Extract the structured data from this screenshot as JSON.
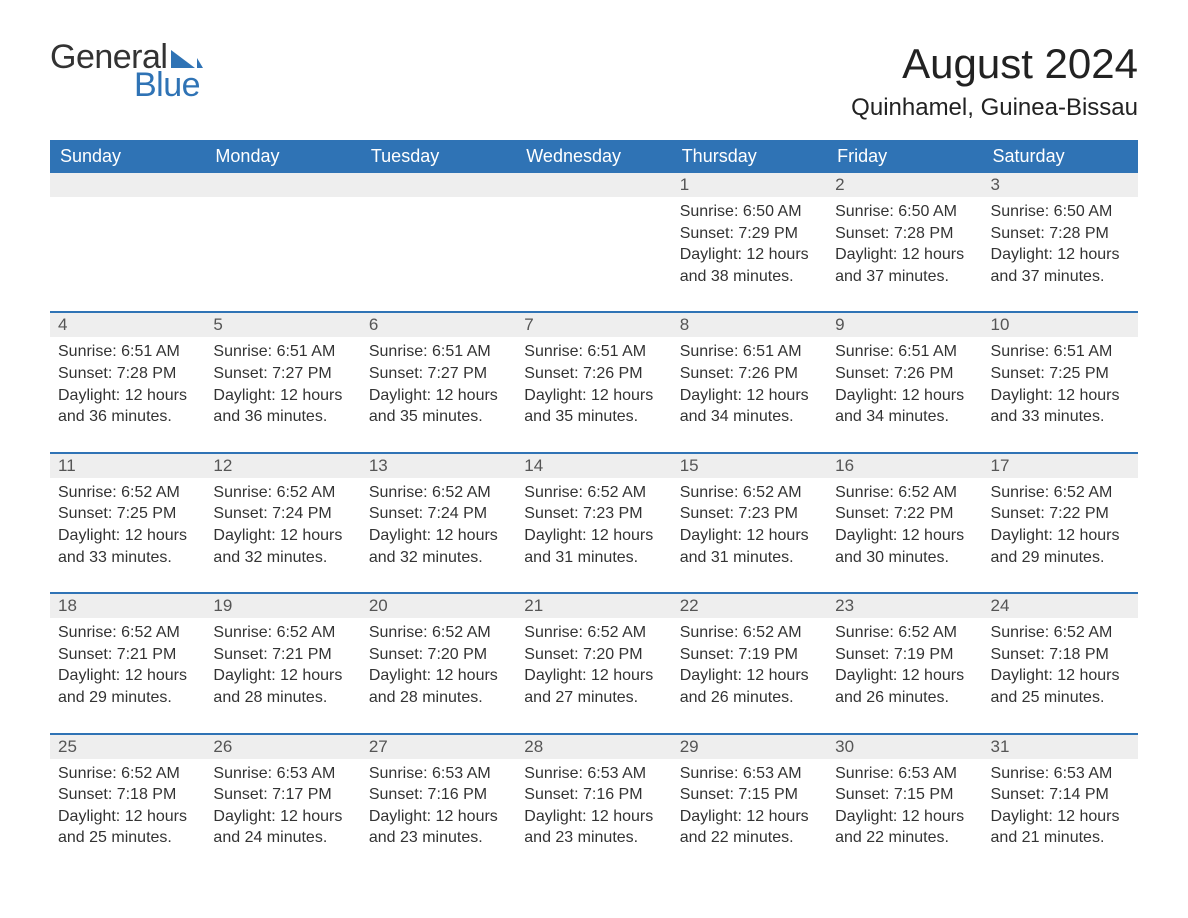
{
  "brand": {
    "text1": "General",
    "text2": "Blue",
    "logo_color": "#2f73b5",
    "text1_color": "#333333"
  },
  "title": "August 2024",
  "location": "Quinhamel, Guinea-Bissau",
  "colors": {
    "header_bg": "#2f73b5",
    "header_fg": "#ffffff",
    "date_bar_bg": "#eeeeee",
    "date_bar_fg": "#555555",
    "body_text": "#333333",
    "week_rule": "#2f73b5",
    "page_bg": "#ffffff"
  },
  "typography": {
    "title_fontsize": 42,
    "location_fontsize": 24,
    "dayheader_fontsize": 18,
    "date_fontsize": 17,
    "body_fontsize": 16,
    "font_family": "Arial, Helvetica, sans-serif"
  },
  "day_names": [
    "Sunday",
    "Monday",
    "Tuesday",
    "Wednesday",
    "Thursday",
    "Friday",
    "Saturday"
  ],
  "weeks": [
    [
      {
        "empty": true
      },
      {
        "empty": true
      },
      {
        "empty": true
      },
      {
        "empty": true
      },
      {
        "date": "1",
        "sunrise": "Sunrise: 6:50 AM",
        "sunset": "Sunset: 7:29 PM",
        "daylight": "Daylight: 12 hours and 38 minutes."
      },
      {
        "date": "2",
        "sunrise": "Sunrise: 6:50 AM",
        "sunset": "Sunset: 7:28 PM",
        "daylight": "Daylight: 12 hours and 37 minutes."
      },
      {
        "date": "3",
        "sunrise": "Sunrise: 6:50 AM",
        "sunset": "Sunset: 7:28 PM",
        "daylight": "Daylight: 12 hours and 37 minutes."
      }
    ],
    [
      {
        "date": "4",
        "sunrise": "Sunrise: 6:51 AM",
        "sunset": "Sunset: 7:28 PM",
        "daylight": "Daylight: 12 hours and 36 minutes."
      },
      {
        "date": "5",
        "sunrise": "Sunrise: 6:51 AM",
        "sunset": "Sunset: 7:27 PM",
        "daylight": "Daylight: 12 hours and 36 minutes."
      },
      {
        "date": "6",
        "sunrise": "Sunrise: 6:51 AM",
        "sunset": "Sunset: 7:27 PM",
        "daylight": "Daylight: 12 hours and 35 minutes."
      },
      {
        "date": "7",
        "sunrise": "Sunrise: 6:51 AM",
        "sunset": "Sunset: 7:26 PM",
        "daylight": "Daylight: 12 hours and 35 minutes."
      },
      {
        "date": "8",
        "sunrise": "Sunrise: 6:51 AM",
        "sunset": "Sunset: 7:26 PM",
        "daylight": "Daylight: 12 hours and 34 minutes."
      },
      {
        "date": "9",
        "sunrise": "Sunrise: 6:51 AM",
        "sunset": "Sunset: 7:26 PM",
        "daylight": "Daylight: 12 hours and 34 minutes."
      },
      {
        "date": "10",
        "sunrise": "Sunrise: 6:51 AM",
        "sunset": "Sunset: 7:25 PM",
        "daylight": "Daylight: 12 hours and 33 minutes."
      }
    ],
    [
      {
        "date": "11",
        "sunrise": "Sunrise: 6:52 AM",
        "sunset": "Sunset: 7:25 PM",
        "daylight": "Daylight: 12 hours and 33 minutes."
      },
      {
        "date": "12",
        "sunrise": "Sunrise: 6:52 AM",
        "sunset": "Sunset: 7:24 PM",
        "daylight": "Daylight: 12 hours and 32 minutes."
      },
      {
        "date": "13",
        "sunrise": "Sunrise: 6:52 AM",
        "sunset": "Sunset: 7:24 PM",
        "daylight": "Daylight: 12 hours and 32 minutes."
      },
      {
        "date": "14",
        "sunrise": "Sunrise: 6:52 AM",
        "sunset": "Sunset: 7:23 PM",
        "daylight": "Daylight: 12 hours and 31 minutes."
      },
      {
        "date": "15",
        "sunrise": "Sunrise: 6:52 AM",
        "sunset": "Sunset: 7:23 PM",
        "daylight": "Daylight: 12 hours and 31 minutes."
      },
      {
        "date": "16",
        "sunrise": "Sunrise: 6:52 AM",
        "sunset": "Sunset: 7:22 PM",
        "daylight": "Daylight: 12 hours and 30 minutes."
      },
      {
        "date": "17",
        "sunrise": "Sunrise: 6:52 AM",
        "sunset": "Sunset: 7:22 PM",
        "daylight": "Daylight: 12 hours and 29 minutes."
      }
    ],
    [
      {
        "date": "18",
        "sunrise": "Sunrise: 6:52 AM",
        "sunset": "Sunset: 7:21 PM",
        "daylight": "Daylight: 12 hours and 29 minutes."
      },
      {
        "date": "19",
        "sunrise": "Sunrise: 6:52 AM",
        "sunset": "Sunset: 7:21 PM",
        "daylight": "Daylight: 12 hours and 28 minutes."
      },
      {
        "date": "20",
        "sunrise": "Sunrise: 6:52 AM",
        "sunset": "Sunset: 7:20 PM",
        "daylight": "Daylight: 12 hours and 28 minutes."
      },
      {
        "date": "21",
        "sunrise": "Sunrise: 6:52 AM",
        "sunset": "Sunset: 7:20 PM",
        "daylight": "Daylight: 12 hours and 27 minutes."
      },
      {
        "date": "22",
        "sunrise": "Sunrise: 6:52 AM",
        "sunset": "Sunset: 7:19 PM",
        "daylight": "Daylight: 12 hours and 26 minutes."
      },
      {
        "date": "23",
        "sunrise": "Sunrise: 6:52 AM",
        "sunset": "Sunset: 7:19 PM",
        "daylight": "Daylight: 12 hours and 26 minutes."
      },
      {
        "date": "24",
        "sunrise": "Sunrise: 6:52 AM",
        "sunset": "Sunset: 7:18 PM",
        "daylight": "Daylight: 12 hours and 25 minutes."
      }
    ],
    [
      {
        "date": "25",
        "sunrise": "Sunrise: 6:52 AM",
        "sunset": "Sunset: 7:18 PM",
        "daylight": "Daylight: 12 hours and 25 minutes."
      },
      {
        "date": "26",
        "sunrise": "Sunrise: 6:53 AM",
        "sunset": "Sunset: 7:17 PM",
        "daylight": "Daylight: 12 hours and 24 minutes."
      },
      {
        "date": "27",
        "sunrise": "Sunrise: 6:53 AM",
        "sunset": "Sunset: 7:16 PM",
        "daylight": "Daylight: 12 hours and 23 minutes."
      },
      {
        "date": "28",
        "sunrise": "Sunrise: 6:53 AM",
        "sunset": "Sunset: 7:16 PM",
        "daylight": "Daylight: 12 hours and 23 minutes."
      },
      {
        "date": "29",
        "sunrise": "Sunrise: 6:53 AM",
        "sunset": "Sunset: 7:15 PM",
        "daylight": "Daylight: 12 hours and 22 minutes."
      },
      {
        "date": "30",
        "sunrise": "Sunrise: 6:53 AM",
        "sunset": "Sunset: 7:15 PM",
        "daylight": "Daylight: 12 hours and 22 minutes."
      },
      {
        "date": "31",
        "sunrise": "Sunrise: 6:53 AM",
        "sunset": "Sunset: 7:14 PM",
        "daylight": "Daylight: 12 hours and 21 minutes."
      }
    ]
  ]
}
